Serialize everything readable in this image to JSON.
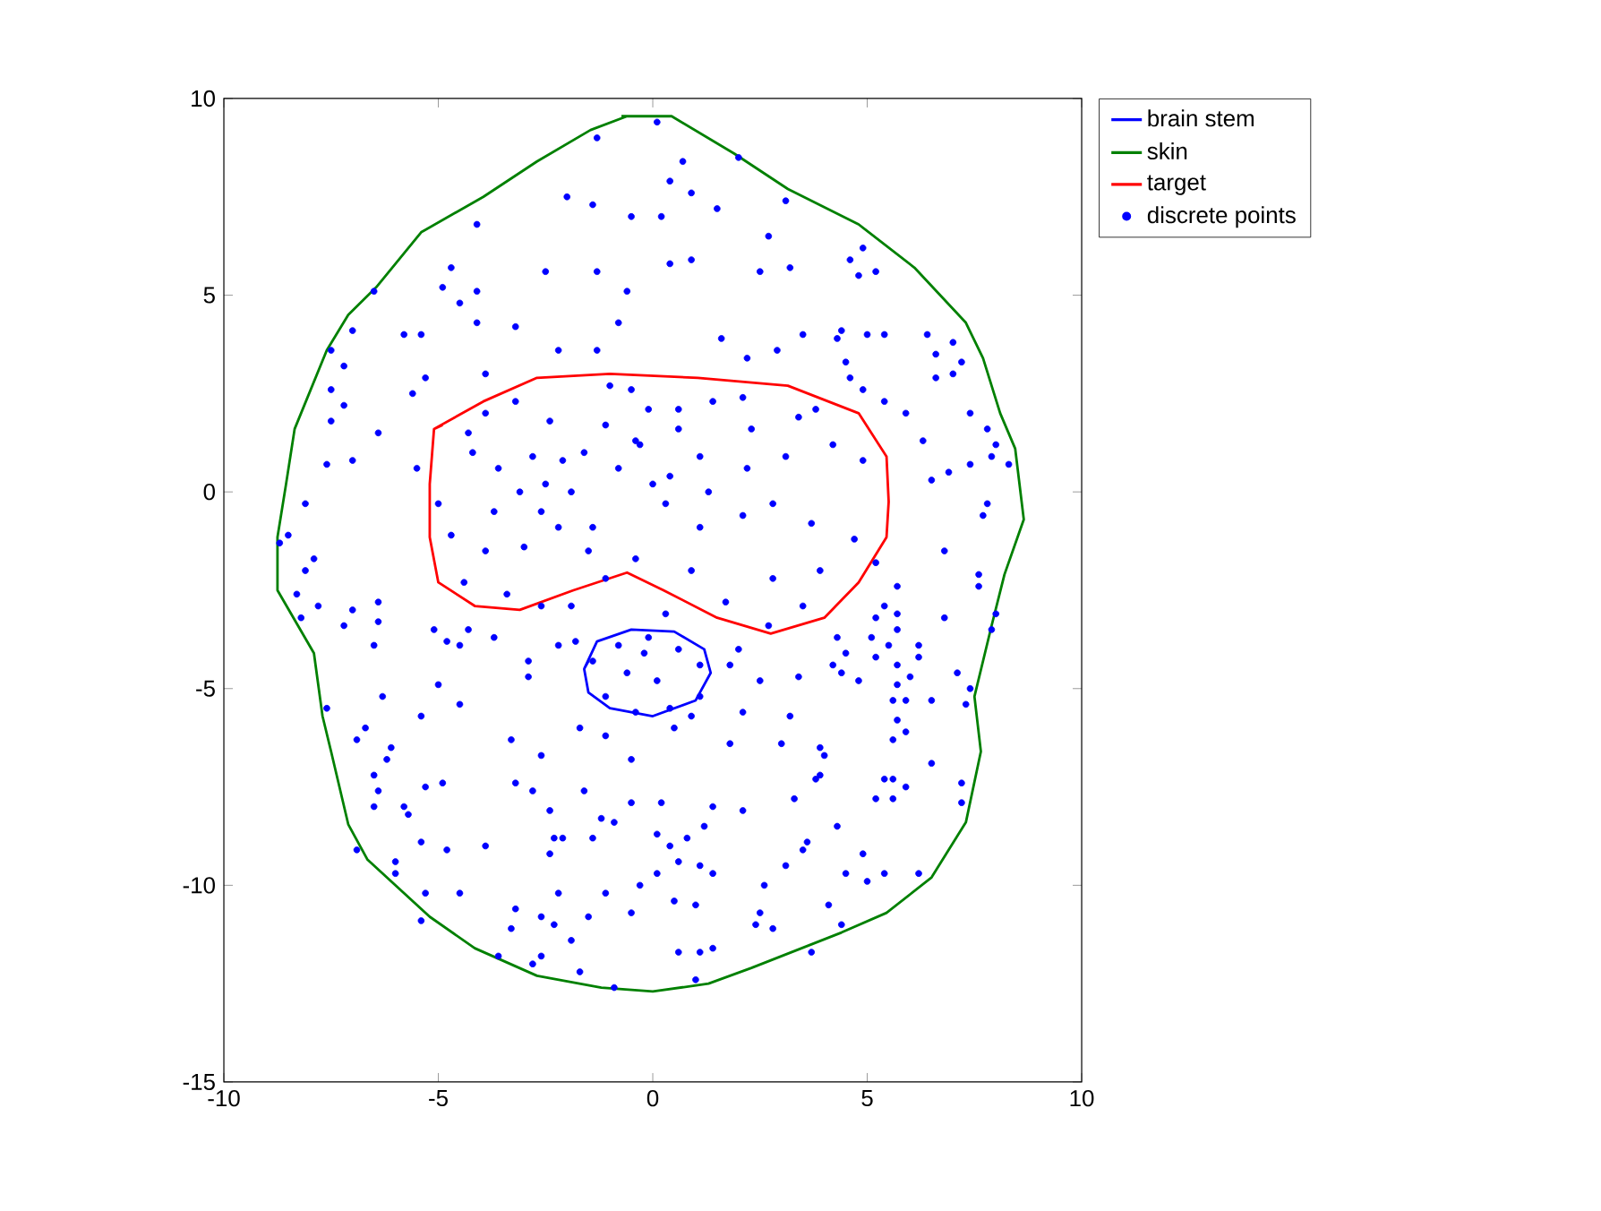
{
  "chart_data": {
    "type": "line",
    "xlim": [
      -10,
      10
    ],
    "ylim": [
      -15,
      10
    ],
    "xticks": [
      -10,
      -5,
      0,
      5,
      10
    ],
    "yticks": [
      -15,
      -10,
      -5,
      0,
      5,
      10
    ],
    "grid": false,
    "legend": "top right",
    "series": [
      {
        "name": "brain stem",
        "color": "#0000ff",
        "marker": "none",
        "x": [
          -1.6,
          -1.3,
          -0.5,
          0.5,
          1.2,
          1.35,
          1.0,
          0.0,
          -1.0,
          -1.5,
          -1.6,
          -1.5
        ],
        "values": [
          -4.5,
          -3.8,
          -3.5,
          -3.55,
          -4.0,
          -4.6,
          -5.3,
          -5.7,
          -5.5,
          -5.1,
          -4.5,
          -4.3
        ]
      },
      {
        "name": "skin",
        "color": "#008000",
        "marker": "none",
        "x": [
          -0.73,
          0.44,
          1.9,
          3.15,
          4.8,
          6.1,
          7.3,
          7.7,
          8.1,
          8.45,
          8.65,
          8.2,
          7.9,
          7.5,
          7.65,
          7.3,
          6.5,
          5.45,
          4.4,
          2.3,
          1.3,
          0.0,
          -1.2,
          -2.7,
          -4.15,
          -5.2,
          -6.65,
          -7.1,
          -7.5,
          -7.7,
          -7.9,
          -8.75,
          -8.75,
          -8.55,
          -8.35,
          -7.6,
          -7.1,
          -6.45,
          -5.4,
          -3.95,
          -2.7,
          -1.45,
          -0.6
        ],
        "values": [
          9.55,
          9.55,
          8.6,
          7.7,
          6.8,
          5.7,
          4.3,
          3.4,
          2.0,
          1.1,
          -0.7,
          -2.1,
          -3.4,
          -5.2,
          -6.6,
          -8.4,
          -9.8,
          -10.7,
          -11.2,
          -12.1,
          -12.5,
          -12.7,
          -12.6,
          -12.3,
          -11.6,
          -10.8,
          -9.35,
          -8.45,
          -6.6,
          -5.7,
          -4.1,
          -2.5,
          -1.15,
          0.2,
          1.6,
          3.6,
          4.5,
          5.2,
          6.6,
          7.5,
          8.4,
          9.2,
          9.55
        ]
      },
      {
        "name": "target",
        "color": "#ff0000",
        "marker": "none",
        "x": [
          -5.1,
          -3.95,
          -2.7,
          -1.0,
          1.05,
          3.15,
          4.8,
          5.45,
          5.5,
          5.45,
          4.8,
          4.0,
          2.75,
          1.5,
          0.25,
          -0.6,
          -1.85,
          -3.1,
          -4.15,
          -5.0,
          -5.2,
          -5.2,
          -5.1,
          -4.9
        ],
        "values": [
          1.6,
          2.3,
          2.9,
          3.0,
          2.9,
          2.7,
          2.0,
          0.9,
          -0.25,
          -1.15,
          -2.3,
          -3.2,
          -3.6,
          -3.2,
          -2.5,
          -2.05,
          -2.5,
          -3.0,
          -2.9,
          -2.3,
          -1.15,
          0.2,
          1.6,
          1.7
        ]
      },
      {
        "name": "discrete points",
        "type": "scatter",
        "color": "#0000ff",
        "marker": "circle",
        "x": [
          -1.3,
          -2.0,
          -1.4,
          -0.5,
          -4.1,
          -4.7,
          -6.5,
          -4.9,
          -4.1,
          -2.5,
          -1.3,
          -0.6,
          -4.5,
          -4.1,
          -3.2,
          -0.8,
          -5.8,
          -5.4,
          -7.0,
          -7.5,
          -7.2,
          -3.9,
          -5.3,
          -5.6,
          -7.5,
          -7.2,
          -7.5,
          -6.4,
          -7.6,
          -7.0,
          -5.5,
          -2.2,
          -1.3,
          -3.2,
          -3.9,
          -4.3,
          -4.2,
          -3.6,
          -2.4,
          -2.1,
          -1.6,
          -1.1,
          -0.5,
          -0.3,
          -2.8,
          0.1,
          0.7,
          0.4,
          0.9,
          0.2,
          1.5,
          2.0,
          3.1,
          2.7,
          0.4,
          0.9,
          2.5,
          3.2,
          4.6,
          4.9,
          5.2,
          4.8,
          1.6,
          2.2,
          2.9,
          3.5,
          4.3,
          4.4,
          5.0,
          5.4,
          6.4,
          6.6,
          7.0,
          7.2,
          6.6,
          7.0,
          4.5,
          4.6,
          4.9,
          5.4,
          5.9,
          6.3,
          7.4,
          7.8,
          8.0,
          7.9,
          8.3,
          7.4,
          6.9,
          6.5,
          0.6,
          1.4,
          2.1,
          3.4,
          4.2,
          4.9,
          2.2,
          1.1,
          3.1,
          0.4,
          3.8,
          -8.1,
          -8.5,
          -8.7,
          -8.1,
          -7.9,
          -8.3,
          -7.8,
          -8.2,
          -7.0,
          -6.4,
          -7.2,
          -6.4,
          -6.5,
          -5.1,
          -4.8,
          -4.3,
          -4.5,
          -3.7,
          -2.9,
          -2.9,
          -2.2,
          -1.8,
          -5.0,
          -6.3,
          -4.5,
          -5.4,
          -7.6,
          -6.7,
          -6.9,
          -6.1,
          -6.2,
          -3.3,
          -2.6,
          -1.7,
          -1.1,
          -0.5,
          -6.5,
          -6.4,
          -6.5,
          -5.3,
          -4.9,
          -5.8,
          -5.7,
          -3.2,
          -2.8,
          -2.4,
          -1.6,
          -0.5,
          -1.2,
          -0.9,
          -2.3,
          -2.1,
          -1.4,
          -2.4,
          -5.4,
          -4.8,
          -3.9,
          -6.9,
          -6.0,
          -6.0,
          -5.3,
          -4.5,
          -2.2,
          -1.1,
          -0.3,
          -3.2,
          -2.6,
          -2.3,
          -1.5,
          -0.5,
          -3.3,
          -1.9,
          -3.6,
          -2.6,
          -2.8,
          -1.7,
          -0.9,
          -5.4,
          -4.7,
          -3.9,
          -3.0,
          -2.2,
          -1.5,
          -4.4,
          -3.4,
          -2.6,
          -1.9,
          -1.1,
          -5.0,
          -3.7,
          -2.6,
          -1.4,
          -0.4,
          7.8,
          7.7,
          6.8,
          7.6,
          7.6,
          6.8,
          8.0,
          7.9,
          5.7,
          5.4,
          5.7,
          5.2,
          5.7,
          5.1,
          5.5,
          6.2,
          6.2,
          5.7,
          6.0,
          4.3,
          4.5,
          5.2,
          4.2,
          4.4,
          4.8,
          5.7,
          5.6,
          5.9,
          6.5,
          7.1,
          7.4,
          7.3,
          5.7,
          5.9,
          5.6,
          2.0,
          1.8,
          2.5,
          3.4,
          2.1,
          3.2,
          1.8,
          3.0,
          3.9,
          4.0,
          3.8,
          3.9,
          3.3,
          5.4,
          5.6,
          5.2,
          5.6,
          5.9,
          6.5,
          7.2,
          7.2,
          4.3,
          2.1,
          1.4,
          1.2,
          0.8,
          0.1,
          0.4,
          0.6,
          1.1,
          1.4,
          0.1,
          3.6,
          3.5,
          3.1,
          4.9,
          4.5,
          5.0,
          5.4,
          6.2,
          2.6,
          4.1,
          4.4,
          1.0,
          0.5,
          2.5,
          2.4,
          2.8,
          0.6,
          1.1,
          1.4,
          3.7,
          1.0,
          0.2,
          0.5,
          0.9,
          0.3,
          1.1,
          2.1,
          2.8,
          3.7,
          4.7,
          5.2,
          3.9,
          2.8,
          1.7,
          2.7,
          3.5,
          0.9,
          0.3,
          -1.4,
          -0.8,
          -0.1,
          0.6,
          1.1,
          1.1,
          0.4,
          -0.4,
          -1.1,
          -0.6,
          0.1,
          -0.2,
          -1.0,
          -0.1,
          -0.4,
          0.6,
          -0.8,
          0.0,
          -1.9,
          1.3,
          2.3,
          -2.5,
          -3.1
        ],
        "values": [
          9.0,
          7.5,
          7.3,
          7.0,
          6.8,
          5.7,
          5.1,
          5.2,
          5.1,
          5.6,
          5.6,
          5.1,
          4.8,
          4.3,
          4.2,
          4.3,
          4.0,
          4.0,
          4.1,
          3.6,
          3.2,
          3.0,
          2.9,
          2.5,
          2.6,
          2.2,
          1.8,
          1.5,
          0.7,
          0.8,
          0.6,
          3.6,
          3.6,
          2.3,
          2.0,
          1.5,
          1.0,
          0.6,
          1.8,
          0.8,
          1.0,
          1.7,
          2.6,
          1.2,
          0.9,
          9.4,
          8.4,
          7.9,
          7.6,
          7.0,
          7.2,
          8.5,
          7.4,
          6.5,
          5.8,
          5.9,
          5.6,
          5.7,
          5.9,
          6.2,
          5.6,
          5.5,
          3.9,
          3.4,
          3.6,
          4.0,
          3.9,
          4.1,
          4.0,
          4.0,
          4.0,
          3.5,
          3.8,
          3.3,
          2.9,
          3.0,
          3.3,
          2.9,
          2.6,
          2.3,
          2.0,
          1.3,
          2.0,
          1.6,
          1.2,
          0.9,
          0.7,
          0.7,
          0.5,
          0.3,
          2.1,
          2.3,
          2.4,
          1.9,
          1.2,
          0.8,
          0.6,
          0.9,
          0.9,
          0.4,
          2.1,
          -0.3,
          -1.1,
          -1.3,
          -2.0,
          -1.7,
          -2.6,
          -2.9,
          -3.2,
          -3.0,
          -2.8,
          -3.4,
          -3.3,
          -3.9,
          -3.5,
          -3.8,
          -3.5,
          -3.9,
          -3.7,
          -4.3,
          -4.7,
          -3.9,
          -3.8,
          -4.9,
          -5.2,
          -5.4,
          -5.7,
          -5.5,
          -6.0,
          -6.3,
          -6.5,
          -6.8,
          -6.3,
          -6.7,
          -6.0,
          -6.2,
          -6.8,
          -7.2,
          -7.6,
          -8.0,
          -7.5,
          -7.4,
          -8.0,
          -8.2,
          -7.4,
          -7.6,
          -8.1,
          -7.6,
          -7.9,
          -8.3,
          -8.4,
          -8.8,
          -8.8,
          -8.8,
          -9.2,
          -8.9,
          -9.1,
          -9.0,
          -9.1,
          -9.4,
          -9.7,
          -10.2,
          -10.2,
          -10.2,
          -10.2,
          -10.0,
          -10.6,
          -10.8,
          -11.0,
          -10.8,
          -10.7,
          -11.1,
          -11.4,
          -11.8,
          -11.8,
          -12.0,
          -12.2,
          -12.6,
          -10.9,
          -1.1,
          -1.5,
          -1.4,
          -0.9,
          -1.5,
          -2.3,
          -2.6,
          -2.9,
          -2.9,
          -2.2,
          -0.3,
          -0.5,
          -0.5,
          -0.9,
          -1.7,
          -0.3,
          -0.6,
          -1.5,
          -2.1,
          -2.4,
          -3.2,
          -3.1,
          -3.5,
          -2.4,
          -2.9,
          -3.1,
          -3.2,
          -3.5,
          -3.7,
          -3.9,
          -3.9,
          -4.2,
          -4.4,
          -4.7,
          -3.7,
          -4.1,
          -4.2,
          -4.4,
          -4.6,
          -4.8,
          -4.9,
          -5.3,
          -5.3,
          -5.3,
          -4.6,
          -5.0,
          -5.4,
          -5.8,
          -6.1,
          -6.3,
          -4.0,
          -4.4,
          -4.8,
          -4.7,
          -5.6,
          -5.7,
          -6.4,
          -6.4,
          -6.5,
          -6.7,
          -7.3,
          -7.2,
          -7.8,
          -7.3,
          -7.3,
          -7.8,
          -7.8,
          -7.5,
          -6.9,
          -7.4,
          -7.9,
          -8.5,
          -8.1,
          -8.0,
          -8.5,
          -8.8,
          -8.7,
          -9.0,
          -9.4,
          -9.5,
          -9.7,
          -9.7,
          -8.9,
          -9.1,
          -9.5,
          -9.2,
          -9.7,
          -9.9,
          -9.7,
          -9.7,
          -10.0,
          -10.5,
          -11.0,
          -10.5,
          -10.4,
          -10.7,
          -11.0,
          -11.1,
          -11.7,
          -11.7,
          -11.6,
          -11.7,
          -12.4,
          -7.9,
          -6.0,
          -5.7,
          -0.3,
          -0.9,
          -0.6,
          -0.3,
          -0.8,
          -1.2,
          -1.8,
          -2.0,
          -2.2,
          -2.8,
          -3.4,
          -2.9,
          -2.0,
          -3.1,
          -4.3,
          -3.9,
          -3.7,
          -4.0,
          -4.4,
          -5.2,
          -5.5,
          -5.6,
          -5.2,
          -4.6,
          -4.8,
          -4.1,
          2.7,
          2.1,
          1.3,
          1.6,
          0.6,
          0.2,
          0.0,
          0.0,
          1.6,
          0.2,
          0.0
        ]
      }
    ]
  }
}
